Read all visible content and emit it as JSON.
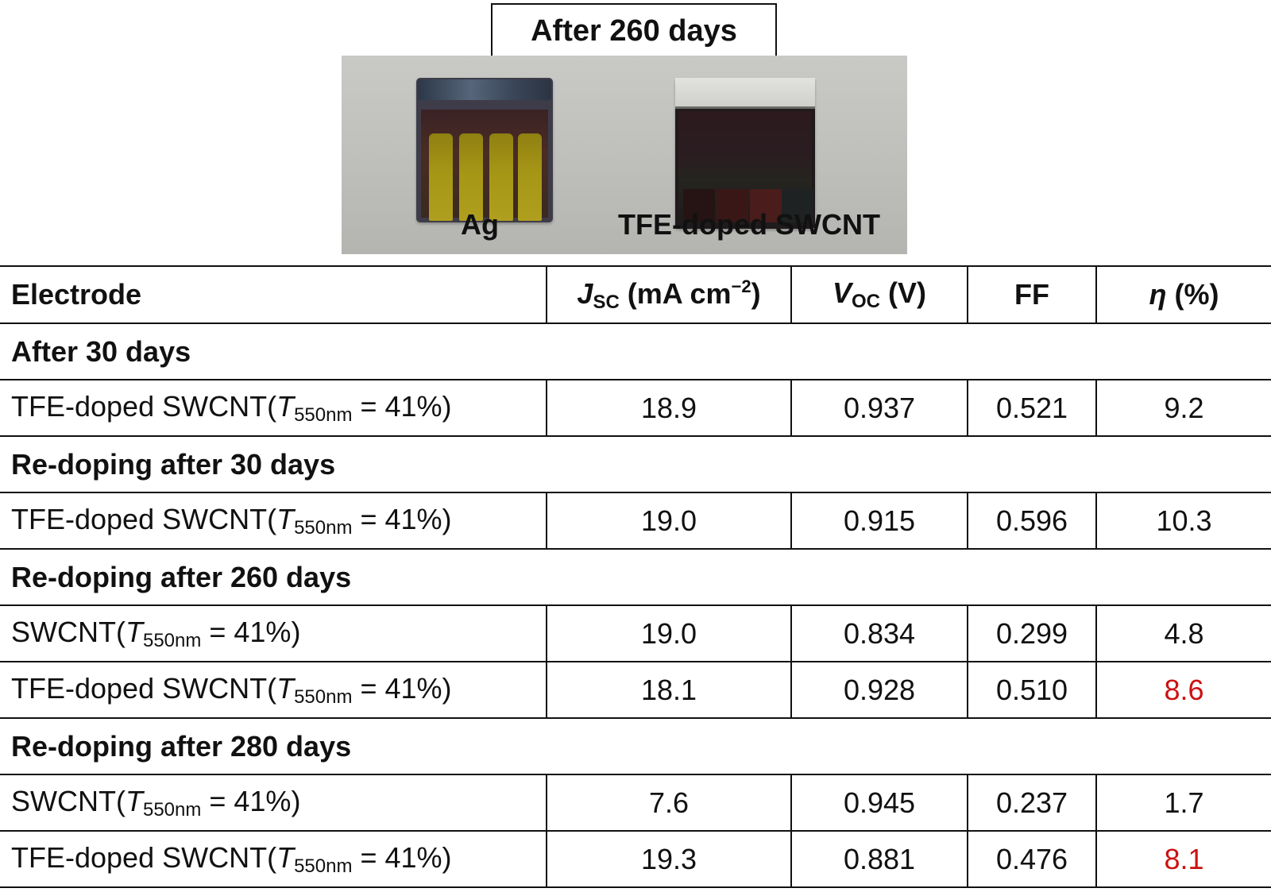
{
  "figure": {
    "title": "After 260 days",
    "photo_labels": {
      "left": "Ag",
      "right": "TFE-doped SWCNT"
    }
  },
  "table": {
    "headers": {
      "electrode": "Electrode",
      "jsc_symbol": "J",
      "jsc_sub": "SC",
      "jsc_unit": " (mA cm",
      "jsc_sup": "−2",
      "jsc_close": ")",
      "voc_symbol": "V",
      "voc_sub": "OC",
      "voc_unit": " (V)",
      "ff": "FF",
      "eta_symbol": "η",
      "eta_unit": " (%)"
    },
    "label_parts": {
      "tfe_prefix": "TFE-doped SWCNT(",
      "sw_prefix": "SWCNT(",
      "t": "T",
      "t_sub": "550nm",
      "t_value": " = 41%)"
    },
    "groups": [
      {
        "title": "After 30 days",
        "rows": [
          {
            "jsc": "18.9",
            "voc": "0.937",
            "ff": "0.521",
            "eta": "9.2"
          }
        ]
      },
      {
        "title": "Re-doping after 30 days",
        "rows": [
          {
            "jsc": "19.0",
            "voc": "0.915",
            "ff": "0.596",
            "eta": "10.3"
          }
        ]
      },
      {
        "title": "Re-doping after 260 days",
        "rows": [
          {
            "jsc": "19.0",
            "voc": "0.834",
            "ff": "0.299",
            "eta": "4.8"
          },
          {
            "jsc": "18.1",
            "voc": "0.928",
            "ff": "0.510",
            "eta": "8.6",
            "eta_color": "#cc1111"
          }
        ]
      },
      {
        "title": "Re-doping after 280 days",
        "rows": [
          {
            "jsc": "7.6",
            "voc": "0.945",
            "ff": "0.237",
            "eta": "1.7"
          },
          {
            "jsc": "19.3",
            "voc": "0.881",
            "ff": "0.476",
            "eta": "8.1",
            "eta_color": "#cc1111"
          }
        ]
      }
    ]
  }
}
